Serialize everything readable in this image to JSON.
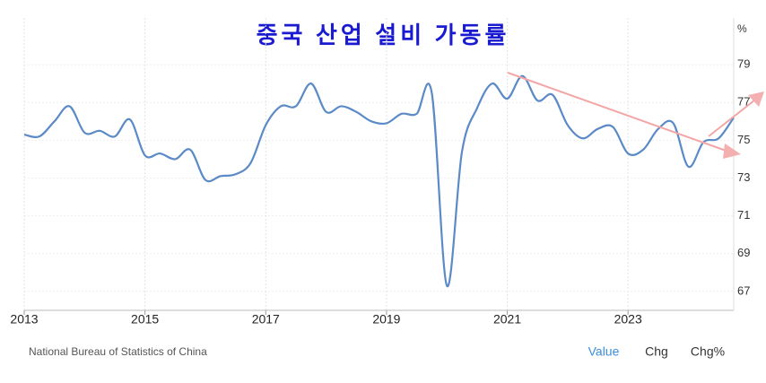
{
  "chart_data": {
    "type": "line",
    "title": "중국 산업 설비 가동률",
    "unit": "%",
    "source": "National Bureau of Statistics of China",
    "tabs": [
      "Value",
      "Chg",
      "Chg%"
    ],
    "x": [
      2013,
      2013.25,
      2013.5,
      2013.75,
      2014,
      2014.25,
      2014.5,
      2014.75,
      2015,
      2015.25,
      2015.5,
      2015.75,
      2016,
      2016.25,
      2016.5,
      2016.75,
      2017,
      2017.25,
      2017.5,
      2017.75,
      2018,
      2018.25,
      2018.5,
      2018.75,
      2019,
      2019.25,
      2019.5,
      2019.75,
      2020,
      2020.25,
      2020.5,
      2020.75,
      2021,
      2021.25,
      2021.5,
      2021.75,
      2022,
      2022.25,
      2022.5,
      2022.75,
      2023,
      2023.25,
      2023.5,
      2023.75,
      2024,
      2024.25,
      2024.5,
      2024.75
    ],
    "series": [
      {
        "color": "#5b8ac6",
        "values": [
          75.3,
          75.2,
          76.0,
          76.8,
          75.4,
          75.5,
          75.2,
          76.1,
          74.2,
          74.3,
          74.0,
          74.5,
          72.9,
          73.1,
          73.2,
          73.8,
          75.8,
          76.8,
          76.8,
          78.0,
          76.5,
          76.8,
          76.5,
          76.0,
          75.9,
          76.4,
          76.4,
          77.5,
          67.3,
          74.4,
          76.7,
          78.0,
          77.2,
          78.4,
          77.1,
          77.4,
          75.8,
          75.1,
          75.6,
          75.7,
          74.3,
          74.5,
          75.6,
          75.9,
          73.6,
          74.9,
          75.1,
          76.2
        ]
      }
    ],
    "xlim": [
      2013,
      2024.75
    ],
    "xticks": [
      2013,
      2015,
      2017,
      2019,
      2021,
      2023
    ],
    "ylim": [
      66,
      80
    ],
    "yticks": [
      67,
      69,
      71,
      73,
      75,
      77,
      79
    ],
    "grid": true
  }
}
